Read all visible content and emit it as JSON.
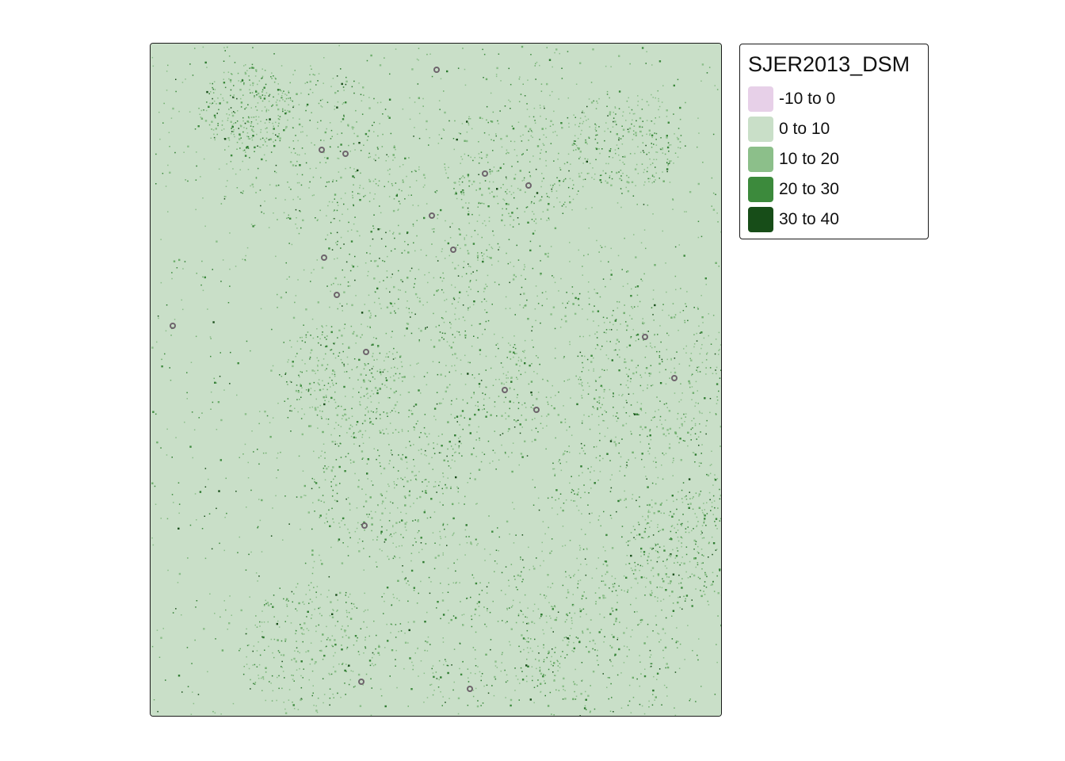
{
  "map": {
    "layer": "SJER2013_DSM",
    "background_class_color": "#c9dfc8",
    "plot_marker": {
      "shape": "circle",
      "stroke": "#6e646c",
      "fill": "none"
    }
  },
  "legend": {
    "title": "SJER2013_DSM",
    "items": [
      {
        "label": "-10 to 0",
        "color": "#e7d0e8"
      },
      {
        "label": "0 to 10",
        "color": "#c9dfc8"
      },
      {
        "label": "10 to 20",
        "color": "#8cbf8a"
      },
      {
        "label": "20 to 30",
        "color": "#3c8a3c"
      },
      {
        "label": "30 to 40",
        "color": "#174d18"
      }
    ]
  }
}
